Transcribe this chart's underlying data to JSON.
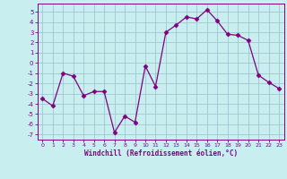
{
  "x": [
    0,
    1,
    2,
    3,
    4,
    5,
    6,
    7,
    8,
    9,
    10,
    11,
    12,
    13,
    14,
    15,
    16,
    17,
    18,
    19,
    20,
    21,
    22,
    23
  ],
  "y": [
    -3.5,
    -4.2,
    -1.0,
    -1.3,
    -3.2,
    -2.8,
    -2.8,
    -6.8,
    -5.2,
    -5.8,
    -0.3,
    -2.3,
    3.0,
    3.7,
    4.5,
    4.3,
    5.2,
    4.1,
    2.8,
    2.7,
    2.2,
    -1.2,
    -1.9,
    -2.5
  ],
  "line_color": "#800080",
  "marker": "D",
  "marker_size": 2.5,
  "bg_color": "#c8eef0",
  "grid_color": "#a0c8d0",
  "xlabel": "Windchill (Refroidissement éolien,°C)",
  "xlim": [
    -0.5,
    23.5
  ],
  "ylim": [
    -7.5,
    5.8
  ],
  "yticks": [
    -7,
    -6,
    -5,
    -4,
    -3,
    -2,
    -1,
    0,
    1,
    2,
    3,
    4,
    5
  ],
  "xticks": [
    0,
    1,
    2,
    3,
    4,
    5,
    6,
    7,
    8,
    9,
    10,
    11,
    12,
    13,
    14,
    15,
    16,
    17,
    18,
    19,
    20,
    21,
    22,
    23
  ],
  "tick_color": "#800080",
  "label_color": "#800080",
  "spine_color": "#800080"
}
